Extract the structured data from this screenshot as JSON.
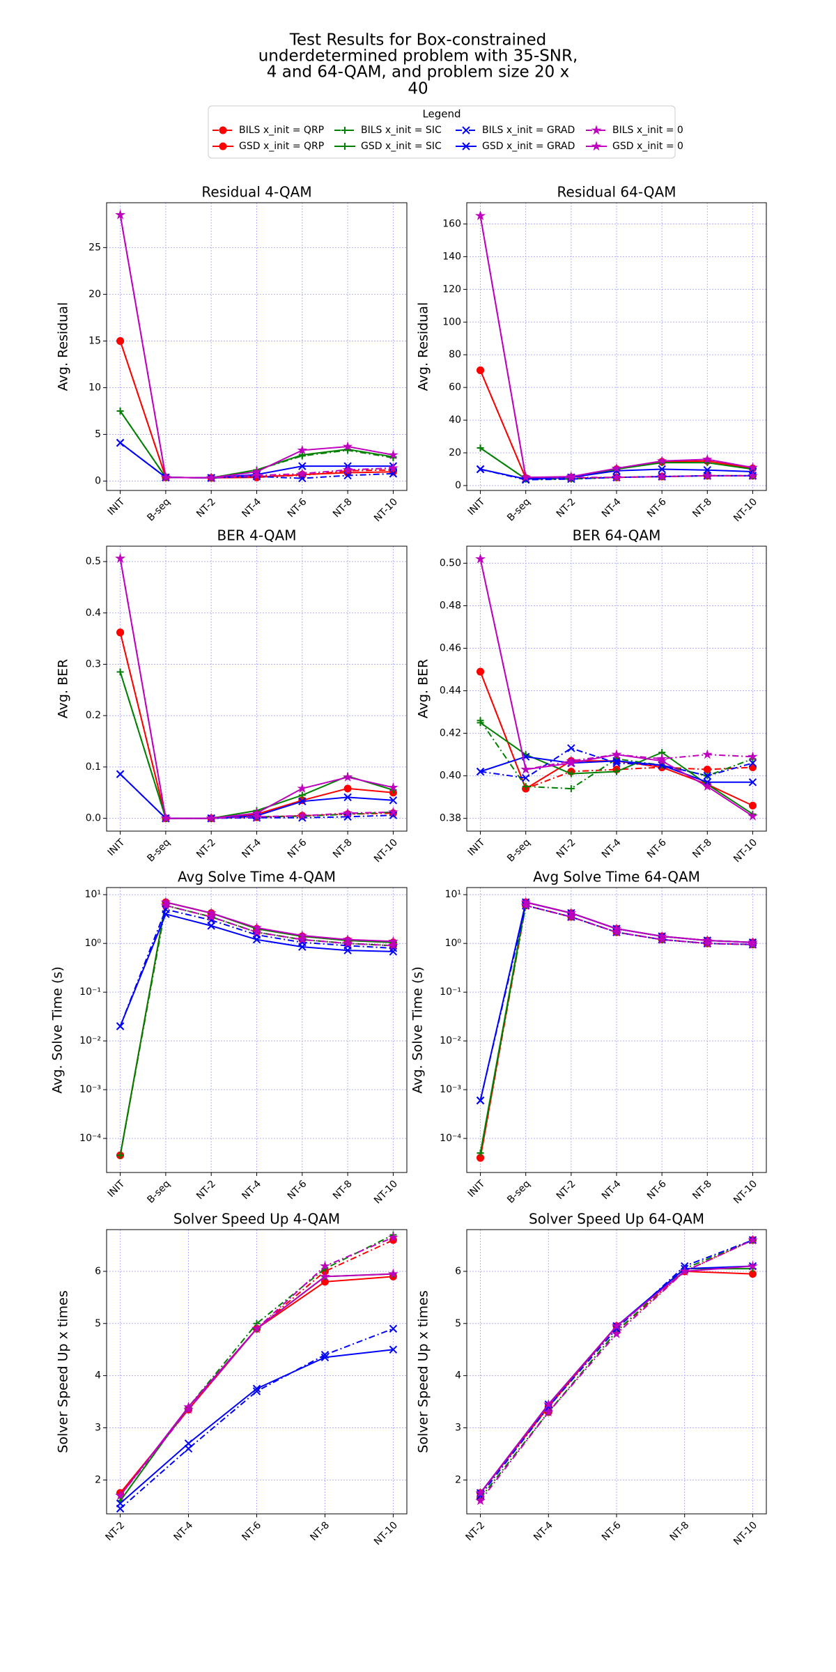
{
  "title": [
    "Test Results for Box-constrained",
    "underdetermined problem with 35-SNR,",
    "4 and 64-QAM, and problem size 20 x",
    "40"
  ],
  "legend": {
    "title": "Legend",
    "entries": [
      {
        "name": "BILS x_init = QRP",
        "color": "#ff0000",
        "linestyle": "dashdot",
        "marker": "circle"
      },
      {
        "name": "GSD x_init = QRP",
        "color": "#ff0000",
        "linestyle": "solid",
        "marker": "circle"
      },
      {
        "name": "BILS x_init = SIC",
        "color": "#008000",
        "linestyle": "dashdot",
        "marker": "plus"
      },
      {
        "name": "GSD x_init = SIC",
        "color": "#008000",
        "linestyle": "solid",
        "marker": "plus"
      },
      {
        "name": "BILS x_init = GRAD",
        "color": "#0000ff",
        "linestyle": "dashdot",
        "marker": "x"
      },
      {
        "name": "GSD x_init = GRAD",
        "color": "#0000ff",
        "linestyle": "solid",
        "marker": "x"
      },
      {
        "name": "BILS x_init = 0",
        "color": "#bf00bf",
        "linestyle": "dashdot",
        "marker": "star"
      },
      {
        "name": "GSD x_init = 0",
        "color": "#bf00bf",
        "linestyle": "solid",
        "marker": "star"
      }
    ]
  },
  "chart_data": [
    {
      "type": "line",
      "title": "Residual 4-QAM",
      "ylabel": "Avg. Residual",
      "yscale": "linear",
      "grid": true,
      "categories": [
        "INIT",
        "B-seq",
        "NT-2",
        "NT-4",
        "NT-6",
        "NT-8",
        "NT-10"
      ],
      "ylim": [
        -1,
        29.8
      ],
      "yticks": [
        0,
        5,
        10,
        15,
        20,
        25
      ],
      "series": [
        {
          "values": [
            15,
            0.4,
            0.35,
            0.5,
            0.6,
            1.1,
            1.2
          ]
        },
        {
          "values": [
            15,
            0.4,
            0.35,
            0.4,
            0.7,
            0.9,
            1.0
          ]
        },
        {
          "values": [
            7.5,
            0.4,
            0.35,
            1.2,
            2.7,
            3.3,
            2.5
          ]
        },
        {
          "values": [
            7.5,
            0.4,
            0.35,
            1.2,
            2.8,
            3.4,
            2.6
          ]
        },
        {
          "values": [
            4.1,
            0.4,
            0.35,
            0.5,
            0.3,
            0.6,
            0.8
          ]
        },
        {
          "values": [
            4.1,
            0.4,
            0.35,
            0.7,
            1.6,
            1.6,
            1.6
          ]
        },
        {
          "values": [
            28.5,
            0.4,
            0.35,
            0.6,
            0.8,
            1.2,
            1.4
          ]
        },
        {
          "values": [
            28.5,
            0.4,
            0.35,
            1.0,
            3.3,
            3.7,
            2.8
          ]
        }
      ]
    },
    {
      "type": "line",
      "title": "Residual 64-QAM",
      "ylabel": "Avg. Residual",
      "yscale": "linear",
      "grid": true,
      "categories": [
        "INIT",
        "B-seq",
        "NT-2",
        "NT-4",
        "NT-6",
        "NT-8",
        "NT-10"
      ],
      "ylim": [
        -3,
        173
      ],
      "yticks": [
        0,
        20,
        40,
        60,
        80,
        100,
        120,
        140,
        160
      ],
      "series": [
        {
          "values": [
            70.5,
            4.5,
            4.5,
            5,
            5.5,
            6,
            6
          ]
        },
        {
          "values": [
            70.5,
            4.5,
            5,
            10,
            14.5,
            15,
            10.5
          ]
        },
        {
          "values": [
            23,
            4,
            4,
            5,
            5.5,
            6,
            6
          ]
        },
        {
          "values": [
            23,
            4,
            5,
            10,
            14,
            14,
            10
          ]
        },
        {
          "values": [
            10,
            3.5,
            4,
            5,
            5.5,
            6,
            6
          ]
        },
        {
          "values": [
            10,
            4,
            5,
            9,
            10,
            9.5,
            8.5
          ]
        },
        {
          "values": [
            165,
            5,
            5,
            5,
            5.5,
            6,
            6
          ]
        },
        {
          "values": [
            165,
            5,
            5.5,
            10.5,
            15,
            16,
            11
          ]
        }
      ]
    },
    {
      "type": "line",
      "title": "BER 4-QAM",
      "ylabel": "Avg. BER",
      "yscale": "linear",
      "grid": true,
      "categories": [
        "INIT",
        "B-seq",
        "NT-2",
        "NT-4",
        "NT-6",
        "NT-8",
        "NT-10"
      ],
      "ylim": [
        -0.025,
        0.53
      ],
      "yticks": [
        {
          "value": 0,
          "label": "0.0"
        },
        0.1,
        0.2,
        0.3,
        0.4,
        0.5
      ],
      "series": [
        {
          "values": [
            0.362,
            0,
            0,
            0.002,
            0.005,
            0.008,
            0.01
          ]
        },
        {
          "values": [
            0.362,
            0,
            0,
            0.008,
            0.035,
            0.058,
            0.05
          ]
        },
        {
          "values": [
            0.285,
            0,
            0,
            0.003,
            0.004,
            0.008,
            0.012
          ]
        },
        {
          "values": [
            0.285,
            0,
            0,
            0.015,
            0.045,
            0.082,
            0.055
          ]
        },
        {
          "values": [
            0.086,
            0,
            0,
            0.001,
            0.001,
            0.003,
            0.006
          ]
        },
        {
          "values": [
            0.086,
            0,
            0,
            0.005,
            0.033,
            0.041,
            0.035
          ]
        },
        {
          "values": [
            0.506,
            0,
            0,
            0.003,
            0.005,
            0.01,
            0.012
          ]
        },
        {
          "values": [
            0.506,
            0,
            0,
            0.01,
            0.058,
            0.08,
            0.06
          ]
        }
      ]
    },
    {
      "type": "line",
      "title": "BER 64-QAM",
      "ylabel": "Avg. BER",
      "yscale": "linear",
      "grid": true,
      "categories": [
        "INIT",
        "B-seq",
        "NT-2",
        "NT-4",
        "NT-6",
        "NT-8",
        "NT-10"
      ],
      "ylim": [
        0.374,
        0.508
      ],
      "yticks": [
        0.38,
        {
          "value": 0.4,
          "label": "0.40"
        },
        0.42,
        0.44,
        0.46,
        0.48,
        {
          "value": 0.5,
          "label": "0.50"
        }
      ],
      "series": [
        {
          "values": [
            0.449,
            0.394,
            0.402,
            0.403,
            0.404,
            0.403,
            0.404
          ]
        },
        {
          "values": [
            0.449,
            0.394,
            0.407,
            0.407,
            0.404,
            0.396,
            0.386
          ]
        },
        {
          "values": [
            0.426,
            0.395,
            0.394,
            0.408,
            0.405,
            0.4,
            0.408
          ]
        },
        {
          "values": [
            0.425,
            0.41,
            0.401,
            0.402,
            0.411,
            0.396,
            0.382
          ]
        },
        {
          "values": [
            0.402,
            0.399,
            0.413,
            0.406,
            0.405,
            0.4,
            0.406
          ]
        },
        {
          "values": [
            0.402,
            0.409,
            0.406,
            0.407,
            0.405,
            0.397,
            0.397
          ]
        },
        {
          "values": [
            0.502,
            0.403,
            0.407,
            0.41,
            0.408,
            0.41,
            0.409
          ]
        },
        {
          "values": [
            0.502,
            0.403,
            0.406,
            0.41,
            0.407,
            0.395,
            0.381
          ]
        }
      ]
    },
    {
      "type": "line",
      "title": "Avg Solve Time 4-QAM",
      "ylabel": "Avg. Solve Time (s)",
      "yscale": "log",
      "grid": true,
      "categories": [
        "INIT",
        "B-seq",
        "NT-2",
        "NT-4",
        "NT-6",
        "NT-8",
        "NT-10"
      ],
      "ylim": [
        2e-05,
        14
      ],
      "yticks": [
        {
          "value": 0.0001,
          "label": "10⁻⁴"
        },
        {
          "value": 0.001,
          "label": "10⁻³"
        },
        {
          "value": 0.01,
          "label": "10⁻²"
        },
        {
          "value": 0.1,
          "label": "10⁻¹"
        },
        {
          "value": 1,
          "label": "10⁰"
        },
        {
          "value": 10,
          "label": "10¹"
        }
      ],
      "series": [
        {
          "values": [
            4.5e-05,
            6,
            3.5,
            1.7,
            1.2,
            1.0,
            0.9
          ]
        },
        {
          "values": [
            4.5e-05,
            7,
            4.2,
            2.0,
            1.4,
            1.15,
            1.05
          ]
        },
        {
          "values": [
            4.5e-05,
            6,
            3.5,
            1.7,
            1.2,
            1.0,
            0.9
          ]
        },
        {
          "values": [
            4.5e-05,
            7,
            4.2,
            2.0,
            1.4,
            1.15,
            1.05
          ]
        },
        {
          "values": [
            0.02,
            5,
            3.0,
            1.5,
            1.05,
            0.9,
            0.8
          ]
        },
        {
          "values": [
            0.02,
            4,
            2.3,
            1.2,
            0.85,
            0.72,
            0.68
          ]
        },
        {
          "values": [
            null,
            6,
            3.5,
            1.7,
            1.2,
            1.0,
            0.9
          ]
        },
        {
          "values": [
            null,
            7,
            4.2,
            2.1,
            1.45,
            1.2,
            1.1
          ]
        }
      ]
    },
    {
      "type": "line",
      "title": "Avg Solve Time 64-QAM",
      "ylabel": "Avg. Solve Time (s)",
      "yscale": "log",
      "grid": true,
      "categories": [
        "INIT",
        "B-seq",
        "NT-2",
        "NT-4",
        "NT-6",
        "NT-8",
        "NT-10"
      ],
      "ylim": [
        2e-05,
        14
      ],
      "yticks": [
        {
          "value": 0.0001,
          "label": "10⁻⁴"
        },
        {
          "value": 0.001,
          "label": "10⁻³"
        },
        {
          "value": 0.01,
          "label": "10⁻²"
        },
        {
          "value": 0.1,
          "label": "10⁻¹"
        },
        {
          "value": 1,
          "label": "10⁰"
        },
        {
          "value": 10,
          "label": "10¹"
        }
      ],
      "series": [
        {
          "values": [
            4e-05,
            6,
            3.5,
            1.7,
            1.2,
            1.0,
            0.95
          ]
        },
        {
          "values": [
            4e-05,
            7,
            4.2,
            2.0,
            1.4,
            1.15,
            1.05
          ]
        },
        {
          "values": [
            5e-05,
            6,
            3.5,
            1.7,
            1.2,
            1.0,
            0.95
          ]
        },
        {
          "values": [
            5e-05,
            7,
            4.2,
            2.0,
            1.4,
            1.15,
            1.05
          ]
        },
        {
          "values": [
            0.0006,
            6,
            3.5,
            1.7,
            1.2,
            1.0,
            0.95
          ]
        },
        {
          "values": [
            0.0006,
            7,
            4.2,
            2.0,
            1.4,
            1.15,
            1.05
          ]
        },
        {
          "values": [
            null,
            6,
            3.5,
            1.7,
            1.2,
            1.0,
            0.95
          ]
        },
        {
          "values": [
            null,
            7,
            4.2,
            2.0,
            1.4,
            1.15,
            1.05
          ]
        }
      ]
    },
    {
      "type": "line",
      "title": "Solver Speed Up 4-QAM",
      "ylabel": "Solver Speed Up x times",
      "yscale": "linear",
      "grid": true,
      "categories": [
        "NT-2",
        "NT-4",
        "NT-6",
        "NT-8",
        "NT-10"
      ],
      "ylim": [
        1.35,
        6.8
      ],
      "yticks": [
        2,
        3,
        4,
        5,
        6
      ],
      "series": [
        {
          "values": [
            1.75,
            3.35,
            4.9,
            6.0,
            6.6
          ]
        },
        {
          "values": [
            1.75,
            3.35,
            4.9,
            5.8,
            5.9
          ]
        },
        {
          "values": [
            1.6,
            3.4,
            5.0,
            6.05,
            6.7
          ]
        },
        {
          "values": [
            1.6,
            3.4,
            4.9,
            5.9,
            5.95
          ]
        },
        {
          "values": [
            1.45,
            2.6,
            3.7,
            4.4,
            4.9
          ]
        },
        {
          "values": [
            1.55,
            2.7,
            3.75,
            4.35,
            4.5
          ]
        },
        {
          "values": [
            1.7,
            3.35,
            4.9,
            6.1,
            6.65
          ]
        },
        {
          "values": [
            1.7,
            3.4,
            4.9,
            5.9,
            5.95
          ]
        }
      ]
    },
    {
      "type": "line",
      "title": "Solver Speed Up 64-QAM",
      "ylabel": "Solver Speed Up x times",
      "yscale": "linear",
      "grid": true,
      "categories": [
        "NT-2",
        "NT-4",
        "NT-6",
        "NT-8",
        "NT-10"
      ],
      "ylim": [
        1.35,
        6.8
      ],
      "yticks": [
        2,
        3,
        4,
        5,
        6
      ],
      "series": [
        {
          "values": [
            1.65,
            3.3,
            4.85,
            6.0,
            6.6
          ]
        },
        {
          "values": [
            1.75,
            3.4,
            4.95,
            6.0,
            5.95
          ]
        },
        {
          "values": [
            1.65,
            3.3,
            4.85,
            6.05,
            6.6
          ]
        },
        {
          "values": [
            1.75,
            3.45,
            4.95,
            6.05,
            6.05
          ]
        },
        {
          "values": [
            1.7,
            3.4,
            4.9,
            6.1,
            6.6
          ]
        },
        {
          "values": [
            1.75,
            3.45,
            4.95,
            6.05,
            6.1
          ]
        },
        {
          "values": [
            1.6,
            3.3,
            4.8,
            6.0,
            6.6
          ]
        },
        {
          "values": [
            1.75,
            3.45,
            4.95,
            6.0,
            6.1
          ]
        }
      ]
    }
  ]
}
